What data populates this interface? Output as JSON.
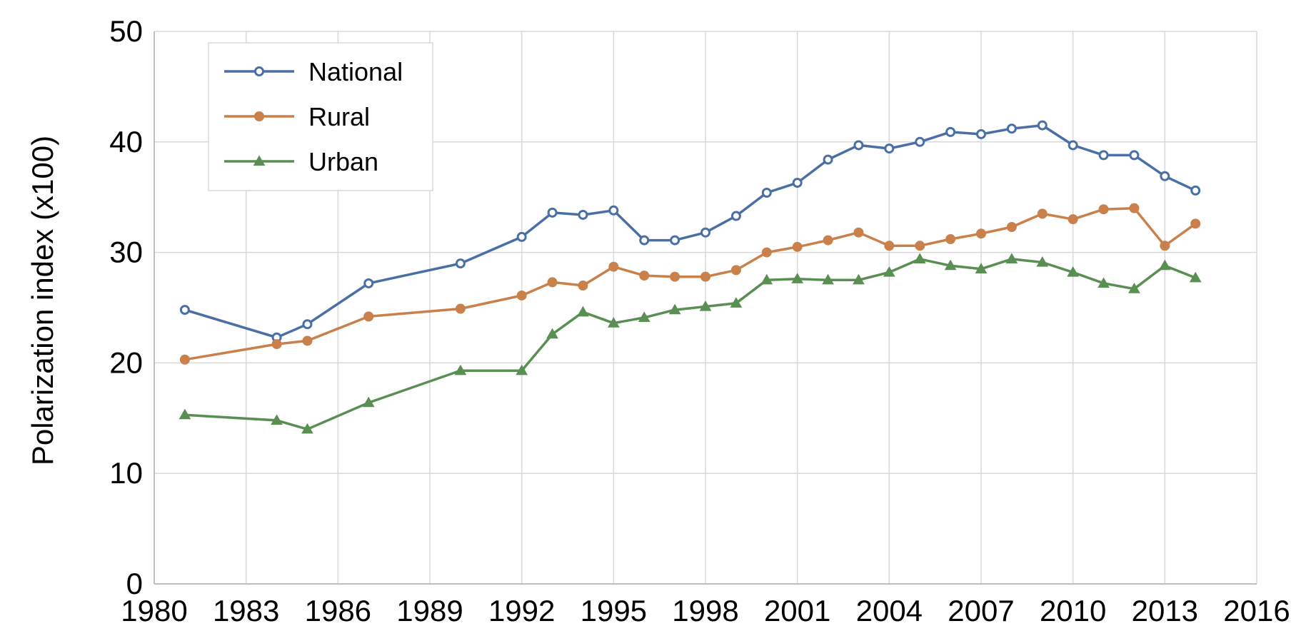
{
  "chart_data": {
    "type": "line",
    "title": "",
    "xlabel": "",
    "ylabel": "Polarization index (x100)",
    "xlim": [
      1980,
      2016
    ],
    "ylim": [
      0,
      50
    ],
    "x_ticks": [
      "1980",
      "1983",
      "1986",
      "1989",
      "1992",
      "1995",
      "1998",
      "2001",
      "2004",
      "2007",
      "2010",
      "2013",
      "2016"
    ],
    "y_ticks": [
      "0",
      "10",
      "20",
      "30",
      "40",
      "50"
    ],
    "grid": true,
    "legend_position": "top-left",
    "series": [
      {
        "name": "National",
        "color": "#4a6fa5",
        "marker": "open-circle",
        "x": [
          1981,
          1984,
          1985,
          1987,
          1990,
          1992,
          1993,
          1994,
          1995,
          1996,
          1997,
          1998,
          1999,
          2000,
          2001,
          2002,
          2003,
          2004,
          2005,
          2006,
          2007,
          2008,
          2009,
          2010,
          2011,
          2012,
          2013,
          2014
        ],
        "y": [
          24.8,
          22.3,
          23.5,
          27.2,
          29.0,
          31.4,
          33.6,
          33.4,
          33.8,
          31.1,
          31.1,
          31.8,
          33.3,
          35.4,
          36.3,
          38.4,
          39.7,
          39.4,
          40.0,
          40.9,
          40.7,
          41.2,
          41.5,
          39.7,
          38.8,
          38.8,
          36.9,
          35.6
        ]
      },
      {
        "name": "Rural",
        "color": "#c9804a",
        "marker": "filled-circle",
        "x": [
          1981,
          1984,
          1985,
          1987,
          1990,
          1992,
          1993,
          1994,
          1995,
          1996,
          1997,
          1998,
          1999,
          2000,
          2001,
          2002,
          2003,
          2004,
          2005,
          2006,
          2007,
          2008,
          2009,
          2010,
          2011,
          2012,
          2013,
          2014
        ],
        "y": [
          20.3,
          21.7,
          22.0,
          24.2,
          24.9,
          26.1,
          27.3,
          27.0,
          28.7,
          27.9,
          27.8,
          27.8,
          28.4,
          30.0,
          30.5,
          31.1,
          31.8,
          30.6,
          30.6,
          31.2,
          31.7,
          32.3,
          33.5,
          33.0,
          33.9,
          34.0,
          30.6,
          32.6
        ]
      },
      {
        "name": "Urban",
        "color": "#5a8f54",
        "marker": "filled-triangle",
        "x": [
          1981,
          1984,
          1985,
          1987,
          1990,
          1992,
          1993,
          1994,
          1995,
          1996,
          1997,
          1998,
          1999,
          2000,
          2001,
          2002,
          2003,
          2004,
          2005,
          2006,
          2007,
          2008,
          2009,
          2010,
          2011,
          2012,
          2013,
          2014
        ],
        "y": [
          15.3,
          14.8,
          14.0,
          16.4,
          19.3,
          19.3,
          22.6,
          24.6,
          23.6,
          24.1,
          24.8,
          25.1,
          25.4,
          27.5,
          27.6,
          27.5,
          27.5,
          28.2,
          29.4,
          28.8,
          28.5,
          29.4,
          29.1,
          28.2,
          27.2,
          26.7,
          28.8,
          27.7
        ]
      }
    ]
  }
}
